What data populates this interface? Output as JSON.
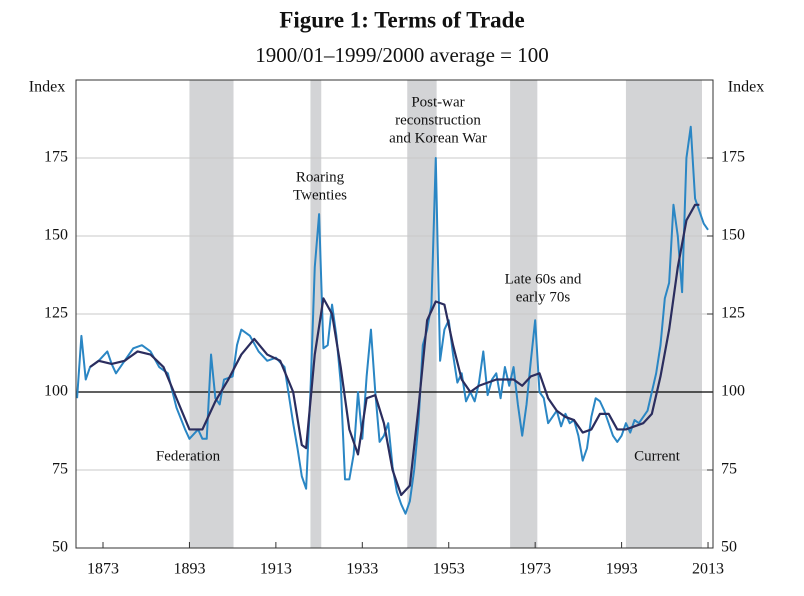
{
  "chart_data": {
    "type": "line",
    "title": "Figure 1: Terms of Trade",
    "subtitle": "1900/01–1999/2000 average = 100",
    "ylabel": "Index",
    "y2label": "Index",
    "xlim": [
      1866.75,
      2014.15
    ],
    "xticks": [
      1873,
      1893,
      1913,
      1933,
      1953,
      1973,
      1993,
      2013
    ],
    "ylim": [
      50,
      200
    ],
    "yticks": [
      50,
      75,
      100,
      125,
      150,
      175
    ],
    "y2lim": [
      50,
      200
    ],
    "y2ticks": [
      50,
      75,
      100,
      125,
      150,
      175
    ],
    "grid": true,
    "reference_line": 100,
    "periods": [
      {
        "label": [
          "Federation"
        ],
        "start": 1893,
        "end": 1903.2,
        "label_pos": "below"
      },
      {
        "label": [
          "Roaring",
          "Twenties"
        ],
        "start": 1921,
        "end": 1923.5,
        "label_pos": "above"
      },
      {
        "label": [
          "Post-war",
          "reconstruction",
          "and Korean War"
        ],
        "start": 1943.4,
        "end": 1950.2,
        "label_pos": "above"
      },
      {
        "label": [
          "Late 60s and",
          "early 70s"
        ],
        "start": 1967.2,
        "end": 1973.5,
        "label_pos": "above"
      },
      {
        "label": [
          "Current"
        ],
        "start": 1994,
        "end": 2011.6,
        "label_pos": "below"
      }
    ],
    "series": [
      {
        "color": "#2a86c4",
        "width": 2,
        "x": [
          1867,
          1868,
          1869,
          1870,
          1872,
          1874,
          1875,
          1876,
          1878,
          1880,
          1882,
          1884,
          1886,
          1888,
          1890,
          1892,
          1893,
          1895,
          1896,
          1897,
          1898,
          1899,
          1900,
          1901,
          1903,
          1904,
          1905,
          1907,
          1909,
          1911,
          1913,
          1915,
          1917,
          1918,
          1919,
          1920,
          1921,
          1922,
          1923,
          1924,
          1925,
          1926,
          1927,
          1928,
          1929,
          1930,
          1931,
          1932,
          1933,
          1934,
          1935,
          1936,
          1937,
          1938,
          1939,
          1940,
          1941,
          1942,
          1943,
          1944,
          1945,
          1946,
          1947,
          1948,
          1949,
          1950,
          1951,
          1952,
          1953,
          1954,
          1955,
          1956,
          1957,
          1958,
          1959,
          1960,
          1961,
          1962,
          1963,
          1964,
          1965,
          1966,
          1967,
          1968,
          1969,
          1970,
          1971,
          1972,
          1973,
          1974,
          1975,
          1976,
          1977,
          1978,
          1979,
          1980,
          1981,
          1982,
          1983,
          1984,
          1985,
          1986,
          1987,
          1988,
          1989,
          1990,
          1991,
          1992,
          1993,
          1994,
          1995,
          1996,
          1997,
          1998,
          1999,
          2000,
          2001,
          2002,
          2003,
          2004,
          2005,
          2006,
          2007,
          2008,
          2009,
          2010,
          2011,
          2012,
          2013
        ],
        "values": [
          98,
          118,
          104,
          108,
          110,
          113,
          109,
          106,
          110,
          114,
          115,
          113,
          108,
          106,
          95,
          88,
          85,
          88,
          85,
          85,
          112,
          98,
          96,
          104,
          105,
          115,
          120,
          118,
          113,
          110,
          111,
          108,
          90,
          82,
          73,
          69,
          100,
          140,
          157,
          114,
          115,
          128,
          118,
          103,
          72,
          72,
          80,
          100,
          85,
          105,
          120,
          100,
          84,
          86,
          90,
          76,
          68,
          64,
          61,
          65,
          75,
          90,
          115,
          120,
          128,
          175,
          110,
          120,
          123,
          112,
          103,
          106,
          97,
          100,
          97,
          103,
          113,
          99,
          104,
          106,
          98,
          108,
          102,
          108,
          96,
          86,
          96,
          110,
          123,
          100,
          98,
          90,
          92,
          94,
          89,
          93,
          90,
          91,
          86,
          78,
          82,
          92,
          98,
          97,
          94,
          90,
          86,
          84,
          86,
          90,
          87,
          91,
          90,
          92,
          94,
          100,
          106,
          115,
          130,
          135,
          160,
          150,
          132,
          175,
          185,
          162,
          158,
          154,
          152
        ]
      },
      {
        "color": "#2b2d5e",
        "width": 2.2,
        "x": [
          1870,
          1872,
          1875,
          1878,
          1881,
          1884,
          1887,
          1890,
          1893,
          1896,
          1899,
          1902,
          1905,
          1908,
          1911,
          1914,
          1917,
          1919,
          1920,
          1922,
          1924,
          1926,
          1928,
          1930,
          1932,
          1934,
          1936,
          1938,
          1940,
          1942,
          1944,
          1946,
          1948,
          1950,
          1952,
          1954,
          1956,
          1958,
          1960,
          1962,
          1964,
          1966,
          1968,
          1970,
          1972,
          1974,
          1976,
          1978,
          1980,
          1982,
          1984,
          1986,
          1988,
          1990,
          1992,
          1994,
          1996,
          1998,
          2000,
          2002,
          2004,
          2006,
          2008,
          2010,
          2011
        ],
        "values": [
          108,
          110,
          109,
          110,
          113,
          112,
          108,
          98,
          88,
          88,
          97,
          104,
          112,
          117,
          112,
          110,
          100,
          83,
          82,
          112,
          130,
          125,
          108,
          88,
          80,
          98,
          99,
          90,
          75,
          67,
          70,
          95,
          123,
          129,
          128,
          115,
          104,
          100,
          102,
          103,
          104,
          104,
          104,
          102,
          105,
          106,
          98,
          94,
          92,
          91,
          87,
          88,
          93,
          93,
          88,
          88,
          89,
          90,
          93,
          105,
          120,
          140,
          155,
          160,
          160
        ]
      }
    ]
  }
}
